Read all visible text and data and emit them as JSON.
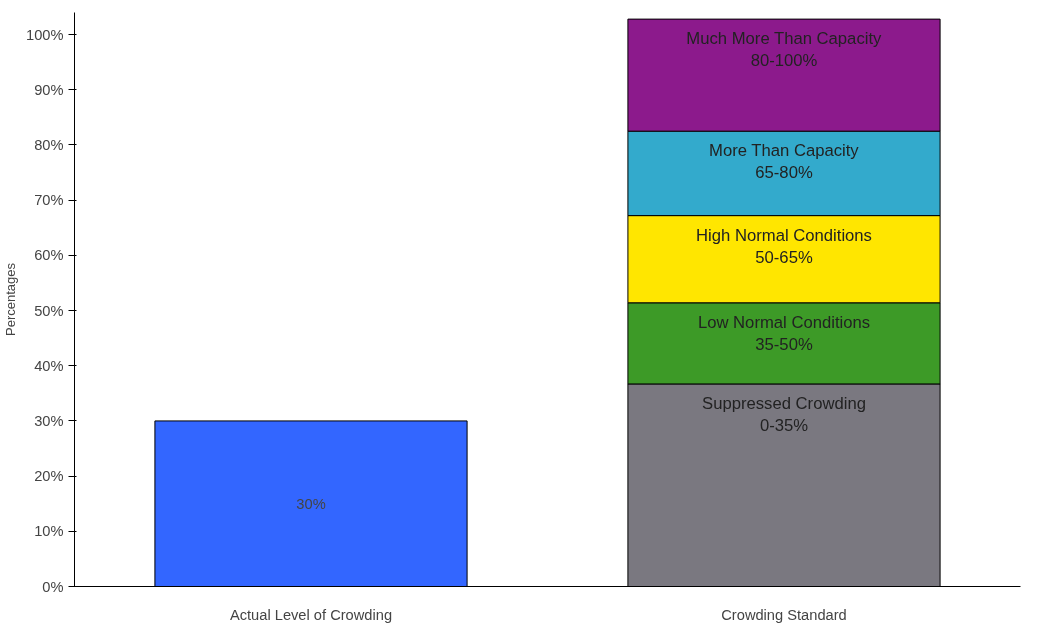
{
  "chart_data": {
    "type": "bar",
    "stacked": true,
    "ylabel": "Percentages",
    "categories": [
      "Actual Level of Crowding",
      "Crowding Standard"
    ],
    "series": [
      {
        "color": "#3366ff",
        "values": [
          30,
          null
        ],
        "value_labels": [
          "30%",
          null
        ]
      },
      {
        "name": "Suppressed Crowding",
        "color": "#7a7880",
        "values": [
          null,
          36.7
        ]
      },
      {
        "name": "Low Normal Conditions",
        "color": "#3d9a27",
        "values": [
          null,
          14.7
        ]
      },
      {
        "name": "High Normal Conditions",
        "color": "#ffe600",
        "values": [
          null,
          15.8
        ]
      },
      {
        "name": "More Than Capacity",
        "color": "#33aacc",
        "values": [
          null,
          15.3
        ]
      },
      {
        "name": "Much More Than Capacity",
        "color": "#8c1a8c",
        "values": [
          null,
          20.3
        ]
      }
    ],
    "annotations": [
      "0-35%",
      "35-50%",
      "50-65%",
      "65-80%",
      "80-100%"
    ],
    "ylim": [
      0,
      104
    ],
    "yticks": [
      {
        "value": 0,
        "label": "0%"
      },
      {
        "value": 10,
        "label": "10%"
      },
      {
        "value": 20,
        "label": "20%"
      },
      {
        "value": 30,
        "label": "30%"
      },
      {
        "value": 40,
        "label": "40%"
      },
      {
        "value": 50,
        "label": "50%"
      },
      {
        "value": 60,
        "label": "60%"
      },
      {
        "value": 70,
        "label": "70%"
      },
      {
        "value": 80,
        "label": "80%"
      },
      {
        "value": 90,
        "label": "90%"
      },
      {
        "value": 100,
        "label": "100%"
      }
    ],
    "grid": false
  }
}
